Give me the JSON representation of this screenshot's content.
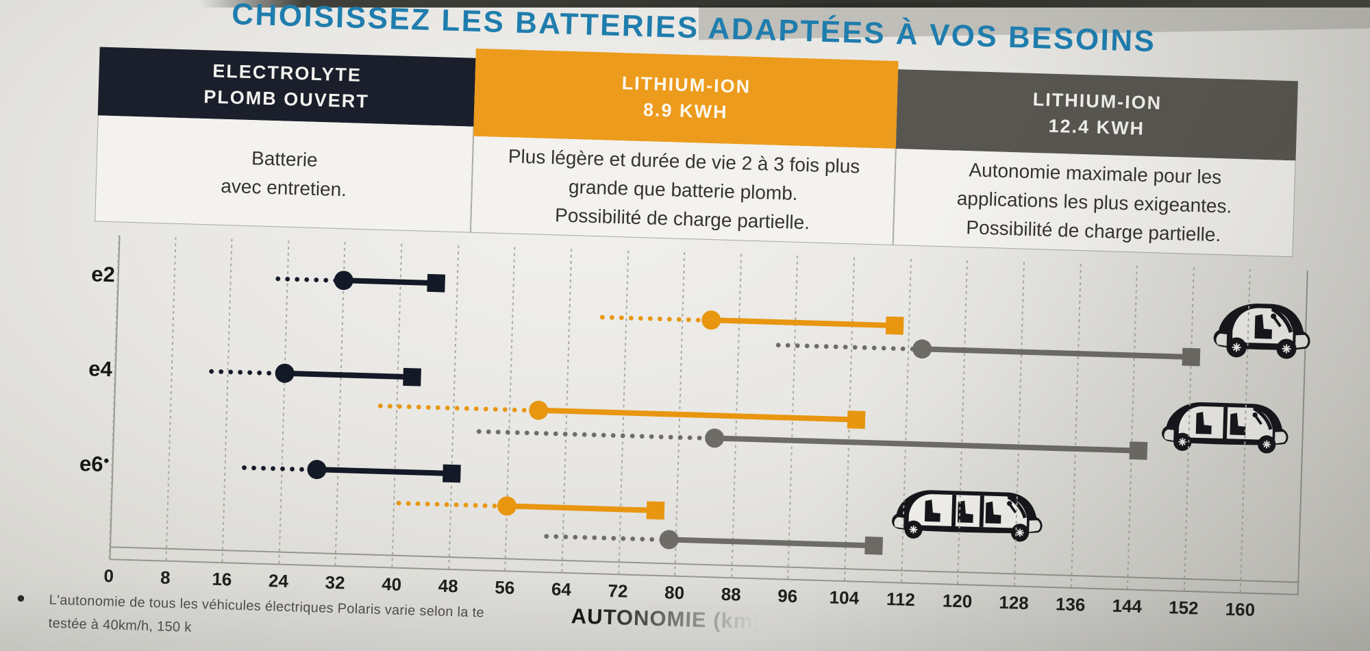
{
  "title": "CHOISISSEZ LES BATTERIES ADAPTÉES À VOS BESOINS",
  "title_color": "#1f7dad",
  "columns": [
    {
      "header": "ELECTROLYTE\nPLOMB OUVERT",
      "description": "Batterie\navec entretien.",
      "header_bg": "#1a1f2b",
      "header_text_color": "#f4f3ef"
    },
    {
      "header": "LITHIUM-ION\n8.9 KWH",
      "description": "Plus légère et durée de vie 2 à 3 fois plus\ngrande que batterie plomb.\nPossibilité de charge partielle.",
      "header_bg": "#ec9b1c",
      "header_text_color": "#fdf8ee"
    },
    {
      "header": "LITHIUM-ION\n12.4 KWH",
      "description": "Autonomie maximale pour les\napplications les plus exigeantes.\nPossibilité de charge partielle.",
      "header_bg": "#585650",
      "header_text_color": "#f2f1ec"
    }
  ],
  "chart_data": {
    "type": "line",
    "variant": "dumbbell-range-plot",
    "title": "",
    "xlabel": "AUTONOMIE (km)",
    "ylabel": "",
    "xlim": [
      0,
      168
    ],
    "grid": true,
    "axis_ticks": [
      0,
      8,
      16,
      24,
      32,
      40,
      48,
      56,
      64,
      72,
      80,
      88,
      96,
      104,
      112,
      120,
      128,
      136,
      144,
      152,
      160
    ],
    "categories": [
      "e2",
      "e4",
      "e6"
    ],
    "category_footnote_markers": [
      "",
      "",
      "●"
    ],
    "value_semantics": [
      "dotted_tail_start_km",
      "range_low_km_circle",
      "range_high_km_square"
    ],
    "series": [
      {
        "name": "ELECTROLYTE PLOMB OUVERT",
        "color": "#141927",
        "values": {
          "e2": [
            22,
            32,
            45
          ],
          "e4": [
            13,
            24,
            42
          ],
          "e6": [
            18,
            29,
            48
          ]
        }
      },
      {
        "name": "LITHIUM-ION 8.9 KWH",
        "color": "#e8960f",
        "values": {
          "e2": [
            68,
            84,
            110
          ],
          "e4": [
            37,
            60,
            105
          ],
          "e6": [
            40,
            56,
            77
          ]
        }
      },
      {
        "name": "LITHIUM-ION 12.4 KWH",
        "color": "#6e6c66",
        "values": {
          "e2": [
            93,
            114,
            152
          ],
          "e4": [
            51,
            85,
            145
          ],
          "e6": [
            61,
            79,
            108
          ]
        }
      }
    ],
    "vehicle_icons": [
      "gem-e2-2-seater",
      "gem-e4-4-seater",
      "gem-e6-6-seater"
    ],
    "legend_position": "none"
  },
  "footnote": {
    "marker": "●",
    "line1": "L'autonomie de tous les véhicules électriques Polaris varie selon la te",
    "line2": "testée à 40km/h, 150 k"
  }
}
